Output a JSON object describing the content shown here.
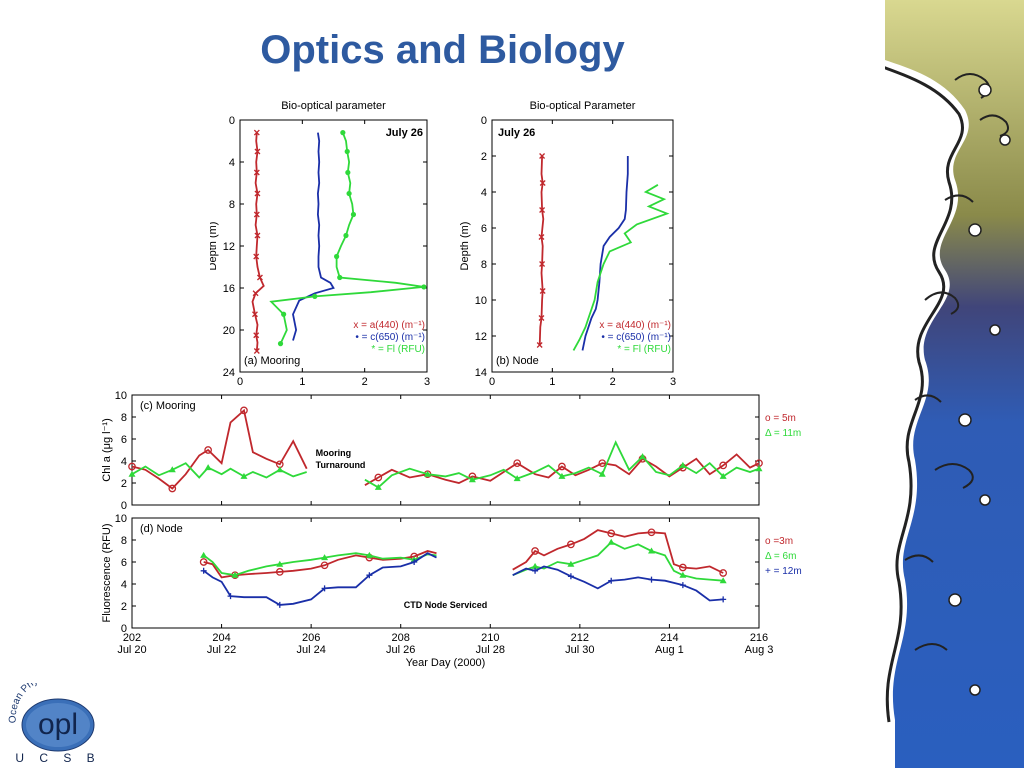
{
  "slide": {
    "title": "Optics and Biology"
  },
  "logo": {
    "arc_text": "Ocean Physics Lab",
    "main_text": "opl",
    "bottom_text": "U C S B"
  },
  "colors": {
    "red": "#c0282d",
    "blue": "#1a2fa8",
    "green": "#2fd93a",
    "title": "#2e5aa0"
  },
  "chart_data": [
    {
      "id": "a",
      "type": "line",
      "title": "Bio-optical parameter",
      "ylabel": "Depth (m)",
      "annotation": "July 26",
      "panel_label": "(a) Mooring",
      "xlim": [
        0,
        3
      ],
      "ylim": [
        0,
        24
      ],
      "y_reversed": true,
      "xticks": [
        0,
        1,
        2,
        3
      ],
      "yticks": [
        0,
        4,
        8,
        12,
        16,
        20,
        24
      ],
      "legend": [
        "x = a(440) (m⁻¹)",
        "• = c(650) (m⁻¹)",
        "* = Fl (RFU)"
      ],
      "series": [
        {
          "name": "a(440)",
          "color": "red",
          "marker": "x",
          "x": [
            0.27,
            0.26,
            0.28,
            0.26,
            0.27,
            0.25,
            0.28,
            0.26,
            0.27,
            0.25,
            0.28,
            0.27,
            0.26,
            0.28,
            0.32,
            0.38,
            0.25,
            0.2,
            0.24,
            0.28,
            0.26,
            0.28,
            0.27
          ],
          "y": [
            1.2,
            2,
            3,
            4,
            5,
            6,
            7,
            8,
            9,
            10,
            11,
            12,
            13,
            14,
            15,
            15.8,
            16.5,
            17.3,
            18.5,
            19.5,
            20.5,
            21.2,
            22
          ]
        },
        {
          "name": "c(650)",
          "color": "blue",
          "marker": "none",
          "x": [
            1.25,
            1.27,
            1.26,
            1.27,
            1.26,
            1.27,
            1.25,
            1.26,
            1.25,
            1.27,
            1.26,
            1.27,
            1.26,
            1.26,
            1.3,
            1.45,
            1.5,
            1.2,
            0.95,
            0.85,
            0.9,
            0.85
          ],
          "y": [
            1.2,
            2,
            3,
            4,
            5,
            6,
            7,
            8,
            9,
            10,
            11,
            12,
            13,
            14,
            15,
            15.5,
            16,
            16.5,
            17.2,
            18.5,
            20,
            21
          ]
        },
        {
          "name": "Fl",
          "color": "green",
          "marker": "dot",
          "x": [
            1.65,
            1.7,
            1.72,
            1.75,
            1.73,
            1.77,
            1.75,
            1.8,
            1.82,
            1.75,
            1.7,
            1.62,
            1.55,
            1.55,
            1.6,
            2.5,
            2.95,
            2.1,
            1.2,
            0.5,
            0.7,
            0.75,
            0.65
          ],
          "y": [
            1.2,
            2,
            3,
            4,
            5,
            6,
            7,
            8,
            9,
            10,
            11,
            12,
            13,
            14,
            15,
            15.5,
            15.9,
            16.4,
            16.8,
            17.3,
            18.5,
            20,
            21.3
          ]
        }
      ]
    },
    {
      "id": "b",
      "type": "line",
      "title": "Bio-optical Parameter",
      "ylabel": "Depth (m)",
      "annotation": "July 26",
      "panel_label": "(b) Node",
      "xlim": [
        0,
        3
      ],
      "ylim": [
        0,
        14
      ],
      "y_reversed": true,
      "xticks": [
        0,
        1,
        2,
        3
      ],
      "yticks": [
        0,
        2,
        4,
        6,
        8,
        10,
        12,
        14
      ],
      "legend": [
        "x = a(440) (m⁻¹)",
        "• = c(650) (m⁻¹)",
        "* = Fl (RFU)"
      ],
      "series": [
        {
          "name": "a(440)",
          "color": "red",
          "marker": "x",
          "x": [
            0.83,
            0.82,
            0.84,
            0.82,
            0.83,
            0.85,
            0.82,
            0.84,
            0.83,
            0.82,
            0.84,
            0.83,
            0.82,
            0.8,
            0.79
          ],
          "y": [
            2,
            3,
            3.5,
            4,
            5,
            5.5,
            6.5,
            7,
            8,
            8.5,
            9.5,
            10,
            11,
            11.5,
            12.5
          ]
        },
        {
          "name": "c(650)",
          "color": "blue",
          "marker": "none",
          "x": [
            2.25,
            2.25,
            2.23,
            2.22,
            2.2,
            2.1,
            1.95,
            1.85,
            1.8,
            1.78,
            1.75,
            1.72,
            1.65,
            1.55,
            1.5
          ],
          "y": [
            2,
            3,
            4,
            5,
            5.5,
            6,
            6.5,
            7,
            8,
            9,
            10,
            10.5,
            11,
            12,
            12.8
          ]
        },
        {
          "name": "Fl",
          "color": "green",
          "marker": "none",
          "x": [
            2.75,
            2.55,
            2.85,
            2.6,
            2.9,
            2.4,
            2.2,
            2.3,
            1.95,
            1.85,
            1.75,
            1.7,
            1.6,
            1.55,
            1.45,
            1.35
          ],
          "y": [
            3.6,
            4,
            4.4,
            4.8,
            5.2,
            5.8,
            6.3,
            6.8,
            7.3,
            8,
            9,
            10,
            11,
            11.5,
            12.2,
            12.8
          ]
        }
      ]
    },
    {
      "id": "c",
      "type": "line",
      "panel_label": "(c) Mooring",
      "ylabel": "Chl a (μg l⁻¹)",
      "xlim": [
        202,
        216
      ],
      "ylim": [
        0,
        10
      ],
      "yticks": [
        0,
        2,
        4,
        6,
        8,
        10
      ],
      "annotation": [
        "Mooring",
        "Turnaround"
      ],
      "legend": [
        "o = 5m",
        "Δ = 11m"
      ],
      "series": [
        {
          "name": "5m",
          "color": "red",
          "marker": "o",
          "x": [
            202,
            202.3,
            202.6,
            202.9,
            203.2,
            203.5,
            203.7,
            204,
            204.2,
            204.5,
            204.7,
            205,
            205.3,
            205.6,
            205.9,
            206.1,
            206.3,
            206.5,
            206.7,
            207.0,
            207.2,
            207.5,
            207.8,
            208.2,
            208.6,
            209,
            209.3,
            209.6,
            210,
            210.3,
            210.6,
            211,
            211.3,
            211.6,
            211.9,
            212.2,
            212.5,
            212.8,
            213.1,
            213.4,
            213.7,
            214,
            214.3,
            214.6,
            214.9,
            215.2,
            215.5,
            215.8,
            216
          ],
          "y": [
            3.5,
            3.2,
            2.4,
            1.5,
            2.8,
            4.5,
            5.0,
            3.8,
            7.5,
            8.6,
            4.8,
            4.2,
            3.7,
            5.8,
            3.3,
            null,
            null,
            null,
            null,
            null,
            1.8,
            2.5,
            3.2,
            2.5,
            2.8,
            2.3,
            2.0,
            2.6,
            2.2,
            3.0,
            3.8,
            2.8,
            2.5,
            3.5,
            2.7,
            3.2,
            3.8,
            3.6,
            2.8,
            4.2,
            3.5,
            2.6,
            3.4,
            4.2,
            2.8,
            3.6,
            4.6,
            3.4,
            3.8
          ]
        },
        {
          "name": "11m",
          "color": "green",
          "marker": "triangle",
          "x": [
            202,
            202.3,
            202.6,
            202.9,
            203.2,
            203.5,
            203.7,
            204,
            204.2,
            204.5,
            204.7,
            205,
            205.3,
            205.6,
            205.9,
            206.1,
            206.3,
            206.5,
            206.7,
            207.0,
            207.2,
            207.5,
            207.8,
            208.2,
            208.6,
            209,
            209.3,
            209.6,
            210,
            210.3,
            210.6,
            211,
            211.3,
            211.6,
            211.9,
            212.2,
            212.5,
            212.8,
            213.1,
            213.4,
            213.7,
            214,
            214.3,
            214.6,
            214.9,
            215.2,
            215.5,
            215.8,
            216
          ],
          "y": [
            2.8,
            3.5,
            2.7,
            3.2,
            3.8,
            2.5,
            3.4,
            2.8,
            3.3,
            2.6,
            3.0,
            2.5,
            3.2,
            2.6,
            3.0,
            null,
            null,
            null,
            null,
            null,
            2.3,
            1.6,
            2.7,
            3.3,
            2.8,
            2.6,
            2.9,
            2.3,
            2.7,
            3.2,
            2.4,
            3.0,
            3.6,
            2.6,
            2.9,
            3.4,
            2.8,
            5.7,
            3.2,
            4.4,
            3.0,
            2.7,
            3.6,
            2.9,
            3.8,
            2.6,
            3.4,
            3.0,
            3.3
          ]
        }
      ]
    },
    {
      "id": "d",
      "type": "line",
      "panel_label": "(d) Node",
      "ylabel": "Fluorescence (RFU)",
      "xlabel": "Year Day (2000)",
      "xlim": [
        202,
        216
      ],
      "ylim": [
        0,
        10
      ],
      "xticks": [
        202,
        204,
        206,
        208,
        210,
        212,
        214,
        216
      ],
      "date_labels": [
        "Jul 20",
        "Jul 22",
        "Jul 24",
        "Jul 26",
        "Jul 28",
        "Jul 30",
        "Aug 1",
        "Aug 3"
      ],
      "yticks": [
        0,
        2,
        4,
        6,
        8,
        10
      ],
      "annotation": "CTD Node Serviced",
      "legend": [
        "o =3m",
        "Δ = 6m",
        "+ = 12m"
      ],
      "series": [
        {
          "name": "3m",
          "color": "red",
          "marker": "o",
          "x": [
            203.6,
            203.8,
            204,
            204.3,
            204.6,
            205,
            205.3,
            205.6,
            206,
            206.3,
            206.6,
            207,
            207.3,
            207.6,
            208,
            208.3,
            208.6,
            208.8,
            null,
            210.5,
            210.8,
            211.0,
            211.2,
            211.5,
            211.8,
            212.1,
            212.4,
            212.7,
            213.0,
            213.3,
            213.6,
            213.9,
            214.1,
            214.3,
            214.6,
            214.9,
            215.2
          ],
          "y": [
            6.0,
            5.8,
            4.6,
            4.8,
            4.9,
            5.0,
            5.1,
            5.2,
            5.4,
            5.7,
            6.2,
            6.6,
            6.4,
            6.2,
            6.3,
            6.5,
            7.0,
            6.8,
            null,
            5.3,
            6.0,
            7.0,
            6.6,
            7.2,
            7.6,
            8.1,
            8.9,
            8.6,
            8.3,
            8.6,
            8.7,
            8.6,
            5.8,
            5.5,
            5.4,
            5.6,
            5.0
          ]
        },
        {
          "name": "6m",
          "color": "green",
          "marker": "triangle",
          "x": [
            203.6,
            203.8,
            204,
            204.3,
            204.6,
            205,
            205.3,
            205.6,
            206,
            206.3,
            206.6,
            207,
            207.3,
            207.6,
            208,
            208.3,
            208.6,
            208.8,
            null,
            210.5,
            210.8,
            211.0,
            211.2,
            211.5,
            211.8,
            212.1,
            212.4,
            212.7,
            213.0,
            213.3,
            213.6,
            213.9,
            214.1,
            214.3,
            214.6,
            214.9,
            215.2
          ],
          "y": [
            6.6,
            6.0,
            5.0,
            4.8,
            5.2,
            5.6,
            5.8,
            6.0,
            6.2,
            6.4,
            6.6,
            6.8,
            6.6,
            6.3,
            6.4,
            6.2,
            6.7,
            6.6,
            null,
            4.8,
            5.3,
            5.6,
            5.4,
            6.0,
            5.8,
            6.2,
            6.6,
            7.8,
            7.2,
            7.6,
            7.0,
            6.6,
            5.2,
            4.8,
            4.5,
            4.4,
            4.3
          ]
        },
        {
          "name": "12m",
          "color": "blue",
          "marker": "plus",
          "x": [
            203.6,
            203.8,
            204,
            204.2,
            204.5,
            205,
            205.3,
            205.6,
            206,
            206.3,
            206.6,
            207,
            207.3,
            207.6,
            208,
            208.3,
            208.6,
            208.8,
            null,
            210.5,
            210.8,
            211.0,
            211.2,
            211.5,
            211.8,
            212.1,
            212.4,
            212.7,
            213.0,
            213.3,
            213.6,
            213.9,
            214.1,
            214.3,
            214.6,
            214.9,
            215.2
          ],
          "y": [
            5.2,
            4.6,
            4.2,
            2.9,
            2.8,
            2.8,
            2.1,
            2.2,
            2.6,
            3.6,
            3.7,
            3.7,
            4.8,
            5.5,
            5.6,
            6.0,
            6.8,
            6.4,
            null,
            4.8,
            5.4,
            5.2,
            5.6,
            5.3,
            4.7,
            4.2,
            3.6,
            4.3,
            4.4,
            4.6,
            4.4,
            4.3,
            4.1,
            3.9,
            3.4,
            2.5,
            2.6
          ]
        }
      ]
    }
  ]
}
